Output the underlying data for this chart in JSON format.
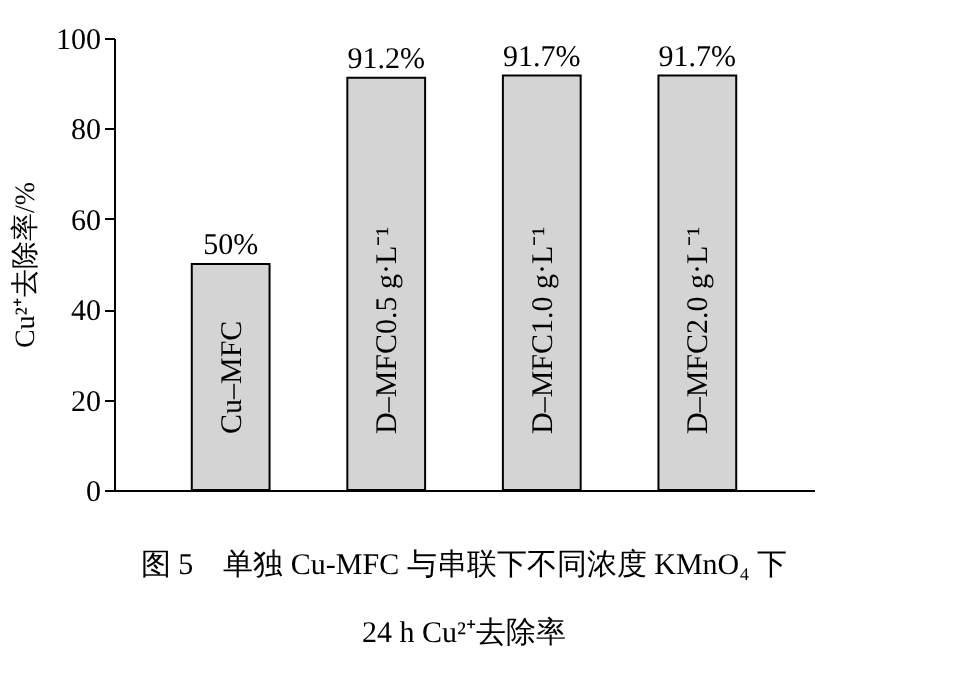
{
  "chart_data": {
    "type": "bar",
    "title": "图 5　单独 Cu-MFC 与串联下不同浓度 KMnO₄ 下\n24 h Cu²⁺去除率",
    "ylabel": "Cu²⁺去除率/%",
    "categories": [
      "Cu–MFC",
      "D–MFC0.5 g·L⁻¹",
      "D–MFC1.0 g·L⁻¹",
      "D–MFC2.0 g·L⁻¹"
    ],
    "values": [
      50,
      91.2,
      91.7,
      91.7
    ],
    "value_labels": [
      "50%",
      "91.2%",
      "91.7%",
      "91.7%"
    ],
    "color": "#d4d4d4",
    "ylim": [
      0,
      100
    ],
    "yticks": [
      0,
      20,
      40,
      60,
      80,
      100
    ]
  }
}
